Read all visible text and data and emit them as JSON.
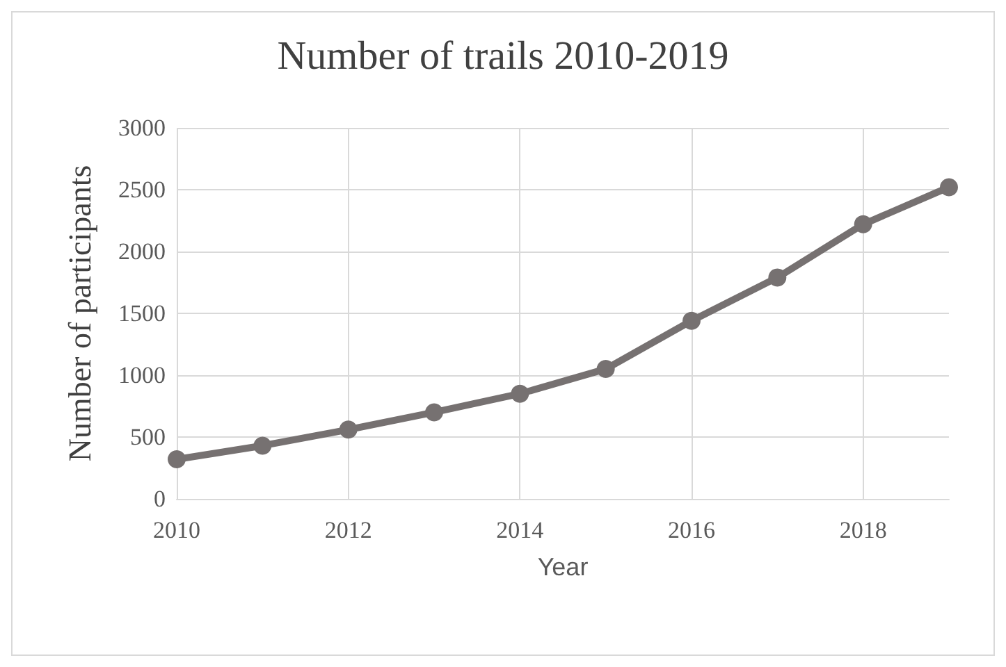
{
  "chart_data": {
    "type": "line",
    "title": "Number of trails 2010-2019",
    "xlabel": "Year",
    "ylabel": "Number of participants",
    "x": [
      2010,
      2011,
      2012,
      2013,
      2014,
      2015,
      2016,
      2017,
      2018,
      2019
    ],
    "series": [
      {
        "color": "#767171",
        "values": [
          320,
          430,
          560,
          700,
          850,
          1050,
          1440,
          1790,
          2220,
          2520
        ]
      }
    ],
    "xlim": [
      2010,
      2019
    ],
    "xticks": [
      2010,
      2012,
      2014,
      2016,
      2018
    ],
    "ylim": [
      0,
      3000
    ],
    "yticks": [
      0,
      500,
      1000,
      1500,
      2000,
      2500,
      3000
    ],
    "grid": true,
    "marker": "circle",
    "line_style": "solid"
  }
}
